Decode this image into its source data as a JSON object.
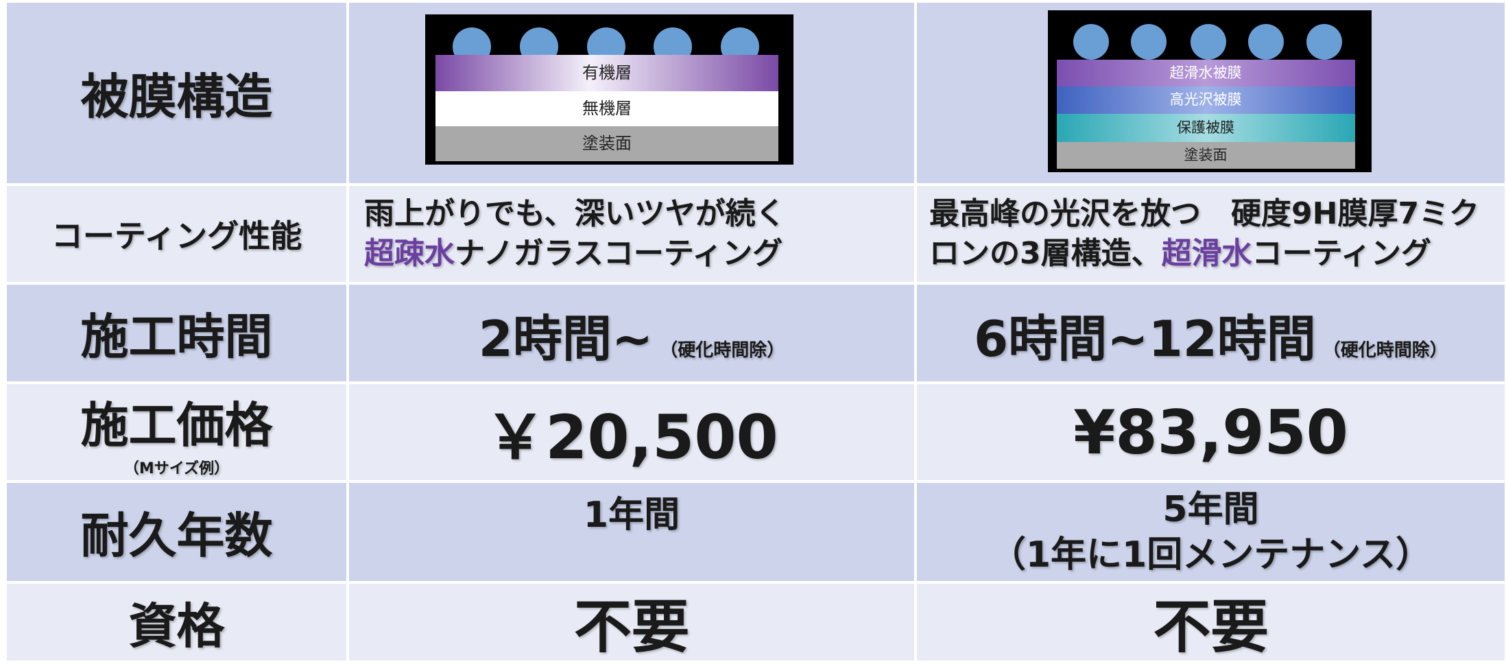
{
  "table": {
    "rows": [
      {
        "header": {
          "title": "被膜構造"
        },
        "cells": [
          {
            "layers": [
              "有機層",
              "無機層",
              "塗装面"
            ]
          },
          {
            "layers": [
              "超滑水被膜",
              "高光沢被膜",
              "保護被膜",
              "塗装面"
            ]
          }
        ]
      },
      {
        "header": {
          "title": "コーティング性能"
        },
        "cells": [
          {
            "lines": [
              [
                "雨上がりでも、深いツヤが続く"
              ],
              [
                "超疎水",
                "ナノガラスコーティング"
              ]
            ]
          },
          {
            "lines": [
              [
                "最高峰の光沢を放つ　硬度9H膜厚7ミク"
              ],
              [
                "ロンの3層構造、",
                "超滑水",
                "コーティング"
              ]
            ]
          }
        ]
      },
      {
        "header": {
          "title": "施工時間"
        },
        "cells": [
          {
            "main": "2時間~",
            "note": "（硬化時間除）"
          },
          {
            "main": "6時間~12時間",
            "note": "（硬化時間除）"
          }
        ]
      },
      {
        "header": {
          "title": "施工価格",
          "subtitle": "（Mサイズ例）"
        },
        "cells": [
          {
            "main": "￥20,500"
          },
          {
            "main": "¥83,950"
          }
        ]
      },
      {
        "header": {
          "title": "耐久年数"
        },
        "cells": [
          {
            "main": "1年間"
          },
          {
            "main": "5年間",
            "note": "（1年に1回メンテナンス）"
          }
        ]
      },
      {
        "header": {
          "title": "資格"
        },
        "cells": [
          {
            "main": "不要"
          },
          {
            "main": "不要"
          }
        ]
      }
    ]
  }
}
